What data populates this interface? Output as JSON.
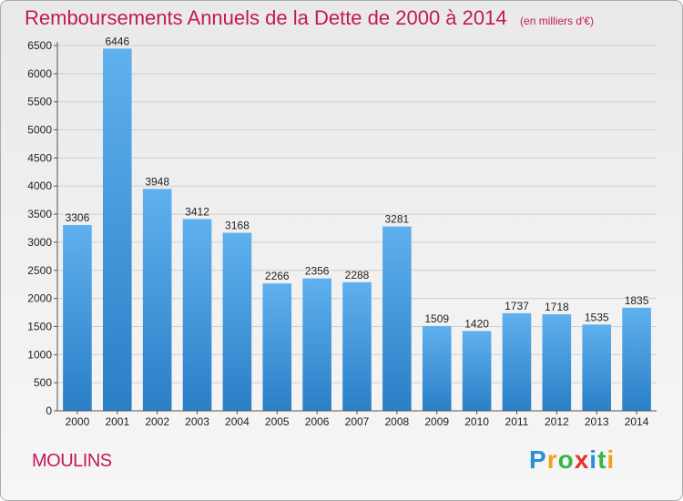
{
  "chart_data": {
    "type": "bar",
    "title": "Remboursements Annuels de la Dette de 2000 à 2014",
    "unit": "(en milliers d'€)",
    "categories": [
      "2000",
      "2001",
      "2002",
      "2003",
      "2004",
      "2005",
      "2006",
      "2007",
      "2008",
      "2009",
      "2010",
      "2011",
      "2012",
      "2013",
      "2014"
    ],
    "values": [
      3306,
      6446,
      3948,
      3412,
      3168,
      2266,
      2356,
      2288,
      3281,
      1509,
      1420,
      1737,
      1718,
      1535,
      1835
    ],
    "yticks": [
      0,
      500,
      1000,
      1500,
      2000,
      2500,
      3000,
      3500,
      4000,
      4500,
      5000,
      5500,
      6000,
      6500
    ],
    "ylim": [
      0,
      6500
    ],
    "grid": true,
    "bar_color": "#4a9fe0"
  },
  "commune": "MOULINS",
  "logo": {
    "letters": [
      "P",
      "r",
      "o",
      "x",
      "i",
      "t",
      "i"
    ],
    "colors": [
      "#2a8fd6",
      "#f0a21e",
      "#3bb54a",
      "#e4322b",
      "#2a8fd6",
      "#3bb54a",
      "#f0a21e"
    ]
  }
}
